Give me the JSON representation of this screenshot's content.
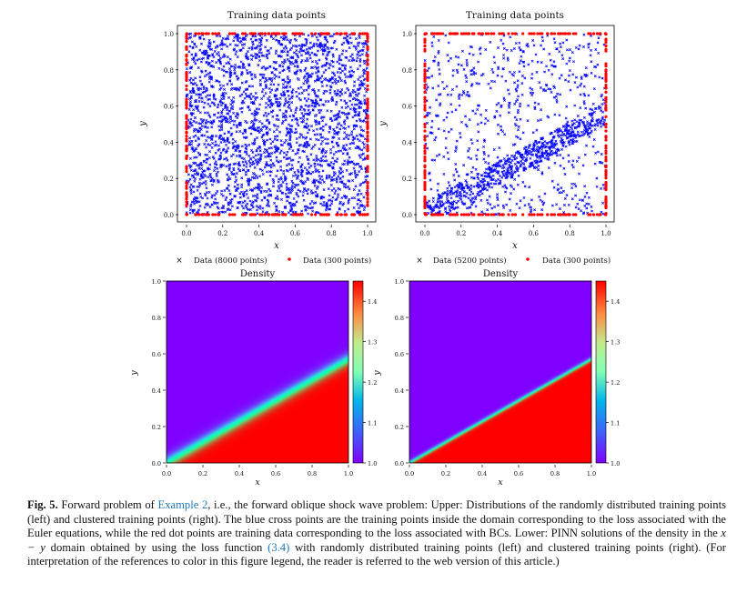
{
  "chart_data": [
    {
      "type": "scatter",
      "title": "Training data points",
      "xlabel": "x",
      "ylabel": "y",
      "xlim": [
        0.0,
        1.0
      ],
      "ylim": [
        0.0,
        1.0
      ],
      "xticks": [
        "0.0",
        "0.2",
        "0.4",
        "0.6",
        "0.8",
        "1.0"
      ],
      "yticks": [
        "0.0",
        "0.2",
        "0.4",
        "0.6",
        "0.8",
        "1.0"
      ],
      "legend_position": "below",
      "series": [
        {
          "name": "Data (8000 points)",
          "color": "#0000ff",
          "distribution": "uniform_interior",
          "marker": "x"
        },
        {
          "name": "Data (300 points)",
          "color": "#ff0000",
          "distribution": "boundary",
          "marker": "o"
        }
      ]
    },
    {
      "type": "scatter",
      "title": "Training data points",
      "xlabel": "x",
      "ylabel": "y",
      "xlim": [
        0.0,
        1.0
      ],
      "ylim": [
        0.0,
        1.0
      ],
      "xticks": [
        "0.0",
        "0.2",
        "0.4",
        "0.6",
        "0.8",
        "1.0"
      ],
      "yticks": [
        "0.0",
        "0.2",
        "0.4",
        "0.6",
        "0.8",
        "1.0"
      ],
      "legend_position": "below",
      "shock_line": {
        "x": [
          0.0,
          1.0
        ],
        "y": [
          0.0,
          0.56
        ]
      },
      "series": [
        {
          "name": "Data (5200 points)",
          "color": "#0000ff",
          "distribution": "clustered_along_shock",
          "marker": "x"
        },
        {
          "name": "Data (300 points)",
          "color": "#ff0000",
          "distribution": "boundary",
          "marker": "o"
        }
      ]
    },
    {
      "type": "heatmap",
      "title": "Density",
      "xlabel": "x",
      "ylabel": "y",
      "xlim": [
        0.0,
        1.0
      ],
      "ylim": [
        0.0,
        1.0
      ],
      "xticks": [
        "0.0",
        "0.2",
        "0.4",
        "0.6",
        "0.8",
        "1.0"
      ],
      "yticks": [
        "0.0",
        "0.2",
        "0.4",
        "0.6",
        "0.8",
        "1.0"
      ],
      "colorbar": {
        "min": 1.0,
        "max": 1.45,
        "ticks": [
          "1.0",
          "1.1",
          "1.2",
          "1.3",
          "1.4"
        ],
        "colormap": "rainbow"
      },
      "low_value": 1.0,
      "high_value": 1.45,
      "shock_line": {
        "x": [
          0.0,
          1.0
        ],
        "y": [
          0.0,
          0.57
        ]
      },
      "shock_width": 0.07
    },
    {
      "type": "heatmap",
      "title": "Density",
      "xlabel": "x",
      "ylabel": "y",
      "xlim": [
        0.0,
        1.0
      ],
      "ylim": [
        0.0,
        1.0
      ],
      "xticks": [
        "0.0",
        "0.2",
        "0.4",
        "0.6",
        "0.8",
        "1.0"
      ],
      "yticks": [
        "0.0",
        "0.2",
        "0.4",
        "0.6",
        "0.8",
        "1.0"
      ],
      "colorbar": {
        "min": 1.0,
        "max": 1.45,
        "ticks": [
          "1.0",
          "1.1",
          "1.2",
          "1.3",
          "1.4"
        ],
        "colormap": "rainbow"
      },
      "low_value": 1.0,
      "high_value": 1.45,
      "shock_line": {
        "x": [
          0.0,
          1.0
        ],
        "y": [
          0.0,
          0.57
        ]
      },
      "shock_width": 0.025
    }
  ],
  "caption": {
    "label": "Fig. 5.",
    "t1": " Forward problem of ",
    "ref1": "Example 2",
    "t2": ", i.e., the forward oblique shock wave problem: Upper: Distributions of the randomly distributed training points (left) and clustered training points (right). The blue cross points are the training points inside the domain corresponding to the loss associated with the Euler equations, while the red dot points are training data corresponding to the loss associated with BCs. Lower: PINN solutions of the density in the ",
    "math": "x − y",
    "t3": " domain obtained by using the loss function ",
    "ref2": "(3.4)",
    "t4": " with randomly distributed training points (left) and clustered training points (right). (For interpretation of the references to color in this figure legend, the reader is referred to the web version of this article.)"
  }
}
